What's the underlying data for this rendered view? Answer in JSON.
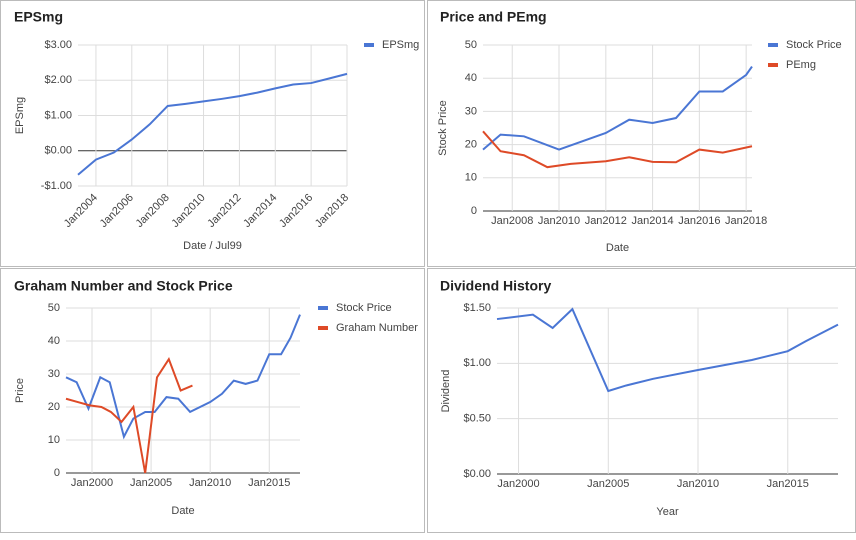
{
  "chart_data": [
    {
      "type": "line",
      "title": "EPSmg",
      "y_label": "EPSmg",
      "x_label": "Date / Jul99",
      "legend": "right",
      "grid": true,
      "x_rotate": true,
      "xlim": [
        2003,
        2018
      ],
      "xticks": [
        {
          "value": 2004,
          "label": "Jan2004"
        },
        {
          "value": 2006,
          "label": "Jan2006"
        },
        {
          "value": 2008,
          "label": "Jan2008"
        },
        {
          "value": 2010,
          "label": "Jan2010"
        },
        {
          "value": 2012,
          "label": "Jan2012"
        },
        {
          "value": 2014,
          "label": "Jan2014"
        },
        {
          "value": 2016,
          "label": "Jan2016"
        },
        {
          "value": 2018,
          "label": "Jan2018"
        }
      ],
      "ylim": [
        -1,
        3
      ],
      "yticks": [
        {
          "value": -1,
          "label": "-$1.00"
        },
        {
          "value": 0,
          "label": "$0.00"
        },
        {
          "value": 1,
          "label": "$1.00"
        },
        {
          "value": 2,
          "label": "$2.00"
        },
        {
          "value": 3,
          "label": "$3.00"
        }
      ],
      "series": [
        {
          "name": "EPSmg",
          "color": "#4a76d4",
          "x": [
            2003,
            2004,
            2005,
            2006,
            2007,
            2008,
            2009,
            2010,
            2011,
            2012,
            2013,
            2014,
            2015,
            2016,
            2017,
            2018
          ],
          "values": [
            -0.68,
            -0.25,
            -0.05,
            0.32,
            0.75,
            1.27,
            1.33,
            1.4,
            1.47,
            1.55,
            1.65,
            1.77,
            1.88,
            1.92,
            2.05,
            2.18
          ]
        }
      ]
    },
    {
      "type": "line",
      "title": "Price and PEmg",
      "y_label": "Stock Price",
      "x_label": "Date",
      "legend": "right",
      "grid": true,
      "x_rotate": false,
      "xlim": [
        2006.75,
        2018.25
      ],
      "xticks": [
        {
          "value": 2008,
          "label": "Jan2008"
        },
        {
          "value": 2010,
          "label": "Jan2010"
        },
        {
          "value": 2012,
          "label": "Jan2012"
        },
        {
          "value": 2014,
          "label": "Jan2014"
        },
        {
          "value": 2016,
          "label": "Jan2016"
        },
        {
          "value": 2018,
          "label": "Jan2018"
        }
      ],
      "ylim": [
        0,
        50
      ],
      "yticks": [
        0,
        10,
        20,
        30,
        40,
        50
      ],
      "series": [
        {
          "name": "Stock Price",
          "color": "#4a76d4",
          "x": [
            2006.75,
            2007.5,
            2008.5,
            2010,
            2012,
            2013,
            2014,
            2015,
            2016,
            2017,
            2018,
            2018.25
          ],
          "values": [
            18.5,
            23,
            22.5,
            18.5,
            23.5,
            27.5,
            26.5,
            28,
            36,
            36,
            41,
            43.5
          ]
        },
        {
          "name": "PEmg",
          "color": "#de4a27",
          "x": [
            2006.75,
            2007.5,
            2008.5,
            2009.5,
            2010.5,
            2012,
            2013,
            2014,
            2015,
            2016,
            2017,
            2018.25
          ],
          "values": [
            24,
            18,
            16.8,
            13.2,
            14.2,
            15,
            16.2,
            14.8,
            14.7,
            18.5,
            17.6,
            19.5
          ]
        }
      ]
    },
    {
      "type": "line",
      "title": "Graham Number and Stock Price",
      "y_label": "Price",
      "x_label": "Date",
      "legend": "right",
      "grid": true,
      "x_rotate": false,
      "xlim": [
        1997.8,
        2017.6
      ],
      "xticks": [
        {
          "value": 2000,
          "label": "Jan2000"
        },
        {
          "value": 2005,
          "label": "Jan2005"
        },
        {
          "value": 2010,
          "label": "Jan2010"
        },
        {
          "value": 2015,
          "label": "Jan2015"
        }
      ],
      "ylim": [
        0,
        50
      ],
      "yticks": [
        0,
        10,
        20,
        30,
        40,
        50
      ],
      "series": [
        {
          "name": "Stock Price",
          "color": "#4a76d4",
          "x": [
            1997.8,
            1998.7,
            1999.7,
            2000.7,
            2001.5,
            2002.7,
            2003.5,
            2004.5,
            2005.3,
            2006.3,
            2007.3,
            2008.3,
            2010,
            2011,
            2012,
            2013,
            2014,
            2015,
            2016,
            2016.8,
            2017.6
          ],
          "values": [
            29,
            27.5,
            19.5,
            29,
            27.5,
            11,
            16.5,
            18.5,
            18.5,
            23,
            22.5,
            18.5,
            21.5,
            24,
            28,
            27,
            28,
            36,
            36,
            41,
            48
          ]
        },
        {
          "name": "Graham Number",
          "color": "#de4a27",
          "x": [
            1997.8,
            1998.8,
            1999.8,
            2000.8,
            2001.6,
            2002.5,
            2003.5,
            2004.5,
            2005.5,
            2006.5,
            2007.5,
            2008.5
          ],
          "values": [
            22.5,
            21.5,
            20.5,
            20,
            18.5,
            15.5,
            20,
            0,
            29,
            34.5,
            25,
            26.5
          ]
        }
      ]
    },
    {
      "type": "line",
      "title": "Dividend History",
      "y_label": "Dividend",
      "x_label": "Year",
      "legend": false,
      "grid": true,
      "x_rotate": false,
      "xlim": [
        1998.8,
        2017.8
      ],
      "xticks": [
        {
          "value": 2000,
          "label": "Jan2000"
        },
        {
          "value": 2005,
          "label": "Jan2005"
        },
        {
          "value": 2010,
          "label": "Jan2010"
        },
        {
          "value": 2015,
          "label": "Jan2015"
        }
      ],
      "ylim": [
        0,
        1.5
      ],
      "yticks": [
        {
          "value": 0,
          "label": "$0.00"
        },
        {
          "value": 0.5,
          "label": "$0.50"
        },
        {
          "value": 1,
          "label": "$1.00"
        },
        {
          "value": 1.5,
          "label": "$1.50"
        }
      ],
      "series": [
        {
          "color": "#4a76d4",
          "x": [
            1998.8,
            2000.8,
            2001.9,
            2003,
            2005,
            2006,
            2007.5,
            2010,
            2013,
            2015,
            2016,
            2017.8
          ],
          "values": [
            1.4,
            1.44,
            1.32,
            1.49,
            0.75,
            0.8,
            0.86,
            0.94,
            1.03,
            1.11,
            1.2,
            1.35
          ]
        }
      ]
    }
  ]
}
